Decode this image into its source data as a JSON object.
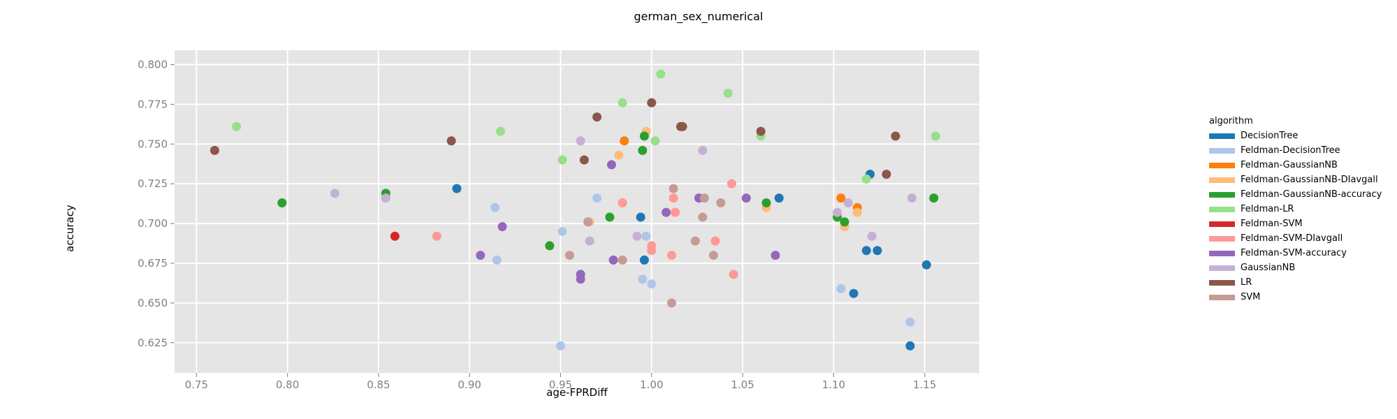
{
  "chart_data": {
    "type": "scatter",
    "title": "german_sex_numerical",
    "xlabel": "age-FPRDiff",
    "ylabel": "accuracy",
    "xlim": [
      0.738,
      1.18
    ],
    "ylim": [
      0.606,
      0.809
    ],
    "xticks": [
      "0.75",
      "0.80",
      "0.85",
      "0.90",
      "0.95",
      "1.00",
      "1.05",
      "1.10",
      "1.15"
    ],
    "yticks": [
      "0.625",
      "0.650",
      "0.675",
      "0.700",
      "0.725",
      "0.750",
      "0.775",
      "0.800"
    ],
    "grid": true,
    "legend_title": "algorithm",
    "legend_position": "right",
    "series": [
      {
        "name": "DecisionTree",
        "color": "#1f77b4",
        "points": [
          [
            0.893,
            0.722
          ],
          [
            0.994,
            0.704
          ],
          [
            0.996,
            0.677
          ],
          [
            1.07,
            0.716
          ],
          [
            1.111,
            0.656
          ],
          [
            1.118,
            0.683
          ],
          [
            1.12,
            0.731
          ],
          [
            1.124,
            0.683
          ],
          [
            1.142,
            0.623
          ],
          [
            1.151,
            0.674
          ]
        ]
      },
      {
        "name": "Feldman-DecisionTree",
        "color": "#aec7e8",
        "points": [
          [
            0.914,
            0.71
          ],
          [
            0.915,
            0.677
          ],
          [
            0.95,
            0.623
          ],
          [
            0.951,
            0.695
          ],
          [
            0.97,
            0.716
          ],
          [
            0.995,
            0.665
          ],
          [
            0.997,
            0.692
          ],
          [
            1.0,
            0.662
          ],
          [
            1.104,
            0.659
          ],
          [
            1.142,
            0.638
          ]
        ]
      },
      {
        "name": "Feldman-GaussianNB",
        "color": "#ff7f0e",
        "points": [
          [
            0.985,
            0.752
          ],
          [
            1.104,
            0.716
          ],
          [
            1.113,
            0.71
          ]
        ]
      },
      {
        "name": "Feldman-GaussianNB-DIavgall",
        "color": "#ffbb78",
        "points": [
          [
            0.966,
            0.701
          ],
          [
            0.982,
            0.743
          ],
          [
            0.997,
            0.758
          ],
          [
            1.063,
            0.71
          ],
          [
            1.106,
            0.698
          ],
          [
            1.113,
            0.707
          ]
        ]
      },
      {
        "name": "Feldman-GaussianNB-accuracy",
        "color": "#2ca02c",
        "points": [
          [
            0.797,
            0.713
          ],
          [
            0.854,
            0.719
          ],
          [
            0.944,
            0.686
          ],
          [
            0.977,
            0.704
          ],
          [
            0.995,
            0.746
          ],
          [
            0.996,
            0.755
          ],
          [
            1.063,
            0.713
          ],
          [
            1.102,
            0.704
          ],
          [
            1.106,
            0.701
          ],
          [
            1.155,
            0.716
          ]
        ]
      },
      {
        "name": "Feldman-LR",
        "color": "#98df8a",
        "points": [
          [
            0.772,
            0.761
          ],
          [
            0.917,
            0.758
          ],
          [
            0.951,
            0.74
          ],
          [
            0.984,
            0.776
          ],
          [
            1.002,
            0.752
          ],
          [
            1.005,
            0.794
          ],
          [
            1.042,
            0.782
          ],
          [
            1.06,
            0.755
          ],
          [
            1.118,
            0.728
          ],
          [
            1.156,
            0.755
          ]
        ]
      },
      {
        "name": "Feldman-SVM",
        "color": "#d62728",
        "points": [
          [
            0.859,
            0.692
          ]
        ]
      },
      {
        "name": "Feldman-SVM-DIavgall",
        "color": "#ff9896",
        "points": [
          [
            0.882,
            0.692
          ],
          [
            0.984,
            0.713
          ],
          [
            1.0,
            0.686
          ],
          [
            1.0,
            0.683
          ],
          [
            1.011,
            0.68
          ],
          [
            1.012,
            0.716
          ],
          [
            1.013,
            0.707
          ],
          [
            1.035,
            0.689
          ],
          [
            1.044,
            0.725
          ],
          [
            1.045,
            0.668
          ]
        ]
      },
      {
        "name": "Feldman-SVM-accuracy",
        "color": "#9467bd",
        "points": [
          [
            0.906,
            0.68
          ],
          [
            0.918,
            0.698
          ],
          [
            0.961,
            0.668
          ],
          [
            0.961,
            0.665
          ],
          [
            0.978,
            0.737
          ],
          [
            0.979,
            0.677
          ],
          [
            1.008,
            0.707
          ],
          [
            1.026,
            0.716
          ],
          [
            1.052,
            0.716
          ],
          [
            1.068,
            0.68
          ]
        ]
      },
      {
        "name": "GaussianNB",
        "color": "#c5b0d5",
        "points": [
          [
            0.826,
            0.719
          ],
          [
            0.854,
            0.716
          ],
          [
            0.961,
            0.752
          ],
          [
            0.966,
            0.689
          ],
          [
            0.992,
            0.692
          ],
          [
            1.028,
            0.746
          ],
          [
            1.102,
            0.707
          ],
          [
            1.108,
            0.713
          ],
          [
            1.121,
            0.692
          ],
          [
            1.143,
            0.716
          ]
        ]
      },
      {
        "name": "LR",
        "color": "#8c564b",
        "points": [
          [
            0.76,
            0.746
          ],
          [
            0.89,
            0.752
          ],
          [
            0.963,
            0.74
          ],
          [
            0.97,
            0.767
          ],
          [
            1.0,
            0.776
          ],
          [
            1.016,
            0.761
          ],
          [
            1.017,
            0.761
          ],
          [
            1.06,
            0.758
          ],
          [
            1.129,
            0.731
          ],
          [
            1.134,
            0.755
          ]
        ]
      },
      {
        "name": "SVM",
        "color": "#c49c94",
        "points": [
          [
            0.955,
            0.68
          ],
          [
            0.965,
            0.701
          ],
          [
            0.984,
            0.677
          ],
          [
            1.011,
            0.65
          ],
          [
            1.012,
            0.722
          ],
          [
            1.024,
            0.689
          ],
          [
            1.028,
            0.704
          ],
          [
            1.029,
            0.716
          ],
          [
            1.034,
            0.68
          ],
          [
            1.038,
            0.713
          ]
        ]
      }
    ]
  }
}
